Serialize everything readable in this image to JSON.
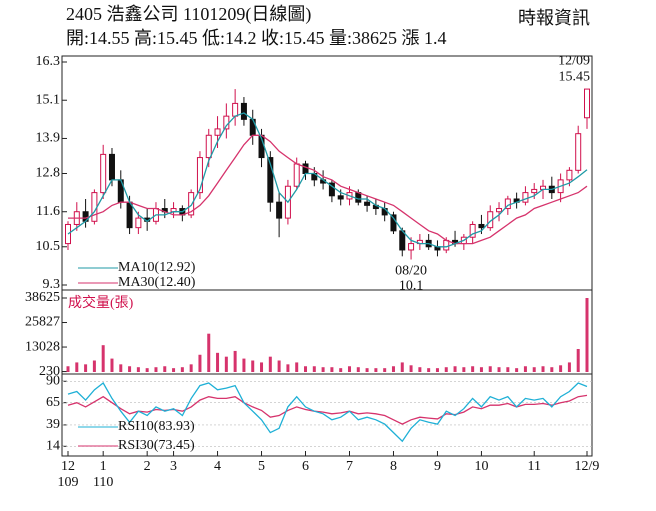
{
  "header": {
    "title": "2405  浩鑫公司 1101209(日線圖)",
    "source": "時報資訊",
    "quote": "開:14.55 高:15.45 低:14.2 收:15.45 量:38625 漲 1.4"
  },
  "chart_data": [
    {
      "type": "candlestick",
      "ylim": [
        9.3,
        16.3
      ],
      "yticks": [
        16.3,
        15.1,
        13.9,
        12.8,
        11.6,
        10.5,
        9.3
      ],
      "up_color": "#d0104c",
      "down_color": "#111111",
      "open": [
        10.6,
        11.2,
        11.6,
        11.3,
        12.2,
        13.4,
        12.6,
        11.9,
        11.1,
        11.4,
        11.3,
        11.7,
        11.6,
        11.7,
        11.5,
        12.2,
        13.3,
        14.0,
        14.2,
        14.6,
        15.0,
        14.5,
        14.0,
        13.3,
        11.9,
        11.4,
        12.4,
        13.1,
        12.8,
        12.6,
        12.5,
        12.1,
        12.0,
        12.2,
        11.9,
        11.8,
        11.7,
        11.5,
        11.0,
        10.4,
        10.6,
        10.7,
        10.5,
        10.4,
        10.7,
        10.6,
        10.8,
        11.2,
        11.1,
        11.6,
        11.7,
        12.0,
        11.9,
        12.2,
        12.3,
        12.4,
        12.2,
        12.6,
        12.9,
        14.55
      ],
      "high": [
        11.3,
        11.9,
        12.0,
        12.3,
        13.7,
        13.6,
        12.9,
        12.1,
        11.6,
        11.7,
        11.9,
        12.0,
        11.9,
        11.8,
        12.3,
        13.5,
        14.2,
        14.6,
        15.0,
        15.45,
        15.2,
        14.8,
        14.2,
        13.5,
        12.2,
        12.6,
        13.3,
        13.2,
        13.0,
        12.9,
        12.6,
        12.3,
        12.4,
        12.3,
        12.1,
        12.0,
        11.9,
        11.6,
        11.1,
        10.8,
        10.9,
        10.9,
        10.7,
        10.8,
        11.0,
        10.9,
        11.3,
        11.5,
        11.8,
        11.9,
        12.1,
        12.2,
        12.4,
        12.5,
        12.6,
        12.7,
        12.8,
        13.0,
        14.3,
        15.45
      ],
      "low": [
        10.4,
        11.0,
        11.1,
        11.2,
        12.0,
        12.4,
        11.7,
        10.9,
        10.9,
        11.0,
        11.2,
        11.4,
        11.4,
        11.3,
        11.4,
        12.0,
        13.0,
        13.6,
        13.9,
        14.3,
        14.3,
        13.7,
        13.0,
        11.6,
        10.8,
        11.2,
        12.3,
        12.6,
        12.4,
        12.3,
        11.9,
        11.8,
        11.8,
        11.8,
        11.6,
        11.5,
        11.3,
        10.9,
        10.2,
        10.1,
        10.4,
        10.4,
        10.2,
        10.3,
        10.5,
        10.4,
        10.6,
        10.9,
        11.0,
        11.3,
        11.5,
        11.7,
        11.8,
        12.0,
        12.0,
        12.0,
        11.9,
        12.4,
        12.8,
        14.2
      ],
      "close": [
        11.2,
        11.6,
        11.3,
        12.2,
        13.4,
        12.6,
        11.9,
        11.1,
        11.4,
        11.3,
        11.7,
        11.6,
        11.7,
        11.5,
        12.2,
        13.3,
        14.0,
        14.2,
        14.6,
        15.0,
        14.5,
        14.0,
        13.3,
        11.9,
        11.4,
        12.4,
        13.1,
        12.8,
        12.6,
        12.5,
        12.1,
        12.0,
        12.2,
        11.9,
        11.8,
        11.7,
        11.5,
        11.0,
        10.4,
        10.6,
        10.7,
        10.5,
        10.4,
        10.7,
        10.6,
        10.8,
        11.2,
        11.1,
        11.6,
        11.7,
        12.0,
        11.9,
        12.2,
        12.3,
        12.4,
        12.2,
        12.6,
        12.9,
        14.05,
        15.45
      ],
      "series": [
        {
          "name": "MA30(12.40)",
          "color": "#d6336c",
          "values": [
            11.4,
            11.4,
            11.4,
            11.5,
            11.6,
            11.8,
            11.9,
            11.9,
            11.8,
            11.7,
            11.7,
            11.6,
            11.5,
            11.5,
            11.6,
            11.8,
            12.1,
            12.5,
            12.9,
            13.3,
            13.7,
            14.0,
            14.0,
            13.8,
            13.5,
            13.3,
            13.1,
            13.0,
            12.9,
            12.7,
            12.6,
            12.4,
            12.3,
            12.2,
            12.1,
            12.0,
            11.9,
            11.8,
            11.6,
            11.4,
            11.2,
            11.0,
            10.9,
            10.7,
            10.6,
            10.6,
            10.6,
            10.7,
            10.8,
            11.0,
            11.2,
            11.4,
            11.5,
            11.7,
            11.8,
            11.9,
            12.0,
            12.1,
            12.2,
            12.4
          ]
        },
        {
          "name": "MA10(12.92)",
          "color": "#1f9aa6",
          "values": [
            10.9,
            11.1,
            11.3,
            11.6,
            12.1,
            12.6,
            12.6,
            11.9,
            11.5,
            11.3,
            11.5,
            11.5,
            11.6,
            11.6,
            11.8,
            12.3,
            13.2,
            13.8,
            14.3,
            14.6,
            14.7,
            14.5,
            13.9,
            13.1,
            12.2,
            11.9,
            12.3,
            12.8,
            12.8,
            12.6,
            12.4,
            12.2,
            12.1,
            12.0,
            12.0,
            11.8,
            11.7,
            11.4,
            11.0,
            10.7,
            10.6,
            10.6,
            10.5,
            10.5,
            10.6,
            10.7,
            10.9,
            11.0,
            11.3,
            11.5,
            11.8,
            11.9,
            12.0,
            12.1,
            12.3,
            12.3,
            12.4,
            12.5,
            12.7,
            12.92
          ]
        }
      ],
      "annotations": [
        {
          "label": "12/09",
          "value": 15.45
        },
        {
          "label": "08/20",
          "value": 10.1
        }
      ]
    },
    {
      "type": "bar",
      "title": "成交量(張)",
      "color": "#d6336c",
      "ylim": [
        0,
        38625
      ],
      "yticks": [
        38625,
        25827,
        13028,
        230
      ],
      "values": [
        3000,
        5000,
        4000,
        6000,
        14000,
        7000,
        4000,
        3000,
        2500,
        2000,
        2500,
        3000,
        2000,
        2500,
        4000,
        9000,
        20000,
        10000,
        8000,
        11000,
        7000,
        6000,
        5000,
        8000,
        6000,
        4000,
        5000,
        3000,
        3000,
        2500,
        2500,
        2000,
        3000,
        2500,
        2000,
        2000,
        2000,
        3000,
        5000,
        3500,
        2500,
        2000,
        2000,
        2500,
        3000,
        2500,
        3000,
        2500,
        3000,
        2500,
        2500,
        2000,
        3000,
        2500,
        3000,
        2500,
        3500,
        5000,
        12000,
        38625
      ]
    },
    {
      "type": "line",
      "ylim": [
        5,
        95
      ],
      "yticks": [
        90,
        65,
        39,
        14
      ],
      "xlim": [
        0,
        59
      ],
      "xticks": [
        {
          "value": 0,
          "label": "12"
        },
        {
          "value": 4,
          "label": "1"
        },
        {
          "value": 9,
          "label": "2"
        },
        {
          "value": 12,
          "label": "3"
        },
        {
          "value": 17,
          "label": "4"
        },
        {
          "value": 22,
          "label": "5"
        },
        {
          "value": 27,
          "label": "6"
        },
        {
          "value": 32,
          "label": "7"
        },
        {
          "value": 37,
          "label": "8"
        },
        {
          "value": 42,
          "label": "9"
        },
        {
          "value": 47,
          "label": "10"
        },
        {
          "value": 53,
          "label": "11"
        },
        {
          "value": 59,
          "label": "12/9"
        }
      ],
      "xtick_years": [
        "109",
        "110"
      ],
      "series": [
        {
          "name": "RSI30(73.45)",
          "color": "#d6336c",
          "values": [
            62,
            65,
            60,
            66,
            72,
            65,
            58,
            52,
            55,
            54,
            57,
            56,
            57,
            55,
            60,
            68,
            72,
            70,
            70,
            72,
            65,
            60,
            56,
            48,
            50,
            56,
            60,
            57,
            55,
            54,
            52,
            53,
            55,
            52,
            53,
            52,
            50,
            45,
            40,
            45,
            48,
            47,
            46,
            52,
            51,
            54,
            60,
            58,
            62,
            62,
            64,
            60,
            63,
            63,
            64,
            62,
            65,
            67,
            72,
            73.45
          ]
        },
        {
          "name": "RSI10(83.93)",
          "color": "#1fb0d6",
          "values": [
            75,
            78,
            68,
            80,
            88,
            70,
            55,
            42,
            55,
            50,
            60,
            55,
            58,
            50,
            70,
            85,
            88,
            80,
            82,
            85,
            65,
            55,
            45,
            30,
            35,
            60,
            72,
            60,
            55,
            52,
            45,
            48,
            55,
            45,
            48,
            45,
            40,
            30,
            20,
            35,
            45,
            42,
            40,
            55,
            50,
            58,
            70,
            60,
            72,
            68,
            72,
            60,
            70,
            68,
            70,
            60,
            72,
            78,
            88,
            83.93
          ]
        }
      ]
    }
  ]
}
